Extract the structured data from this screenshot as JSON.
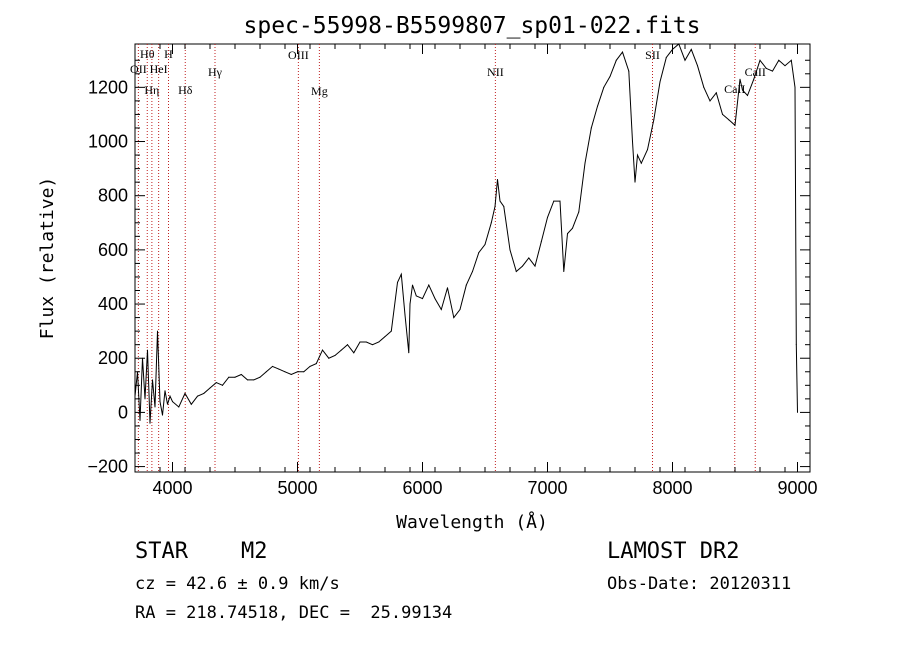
{
  "chart_data": {
    "type": "line",
    "title": "spec-55998-B5599807_sp01-022.fits",
    "xlabel": "Wavelength (Å)",
    "ylabel": "Flux (relative)",
    "xlim": [
      3700,
      9100
    ],
    "ylim": [
      -220,
      1360
    ],
    "x_ticks": [
      4000,
      5000,
      6000,
      7000,
      8000,
      9000
    ],
    "y_ticks": [
      -200,
      0,
      200,
      400,
      600,
      800,
      1000,
      1200
    ],
    "grid": false,
    "series": [
      {
        "color": "#000000",
        "x": [
          3700,
          3720,
          3740,
          3760,
          3780,
          3800,
          3820,
          3840,
          3860,
          3880,
          3900,
          3920,
          3940,
          3960,
          3980,
          4000,
          4050,
          4100,
          4150,
          4200,
          4250,
          4300,
          4350,
          4400,
          4450,
          4500,
          4550,
          4600,
          4650,
          4700,
          4750,
          4800,
          4850,
          4900,
          4950,
          5000,
          5050,
          5100,
          5150,
          5200,
          5250,
          5300,
          5350,
          5400,
          5450,
          5500,
          5550,
          5600,
          5650,
          5700,
          5750,
          5800,
          5830,
          5860,
          5890,
          5900,
          5920,
          5950,
          6000,
          6050,
          6100,
          6150,
          6200,
          6250,
          6300,
          6350,
          6400,
          6450,
          6500,
          6550,
          6580,
          6600,
          6620,
          6650,
          6700,
          6750,
          6800,
          6850,
          6900,
          6950,
          7000,
          7050,
          7100,
          7130,
          7160,
          7200,
          7250,
          7300,
          7350,
          7400,
          7450,
          7500,
          7550,
          7600,
          7650,
          7680,
          7700,
          7720,
          7750,
          7800,
          7850,
          7900,
          7950,
          8000,
          8050,
          8100,
          8150,
          8200,
          8250,
          8300,
          8350,
          8400,
          8450,
          8500,
          8540,
          8560,
          8600,
          8650,
          8700,
          8750,
          8800,
          8850,
          8900,
          8950,
          8980,
          8990,
          9000
        ],
        "y": [
          60,
          150,
          -30,
          200,
          50,
          230,
          -40,
          120,
          20,
          300,
          40,
          -10,
          80,
          30,
          60,
          40,
          20,
          70,
          30,
          60,
          70,
          90,
          110,
          100,
          130,
          130,
          140,
          120,
          120,
          130,
          150,
          170,
          160,
          150,
          140,
          150,
          150,
          170,
          180,
          230,
          200,
          210,
          230,
          250,
          220,
          260,
          260,
          250,
          260,
          280,
          300,
          480,
          510,
          360,
          220,
          400,
          470,
          430,
          420,
          470,
          420,
          380,
          460,
          350,
          380,
          470,
          520,
          590,
          620,
          700,
          760,
          860,
          780,
          760,
          600,
          520,
          540,
          570,
          540,
          630,
          720,
          780,
          780,
          520,
          660,
          680,
          740,
          920,
          1050,
          1130,
          1200,
          1240,
          1300,
          1330,
          1260,
          1000,
          850,
          950,
          920,
          970,
          1080,
          1220,
          1310,
          1340,
          1360,
          1300,
          1340,
          1280,
          1200,
          1150,
          1180,
          1100,
          1080,
          1060,
          1230,
          1190,
          1170,
          1230,
          1300,
          1270,
          1260,
          1300,
          1280,
          1300,
          1200,
          250,
          0
        ]
      }
    ],
    "lines": [
      {
        "name": "OII",
        "x": 3727
      },
      {
        "name": "Hθ",
        "x": 3798
      },
      {
        "name": "Hη",
        "x": 3835
      },
      {
        "name": "HeI",
        "x": 3889
      },
      {
        "name": "H",
        "x": 3968
      },
      {
        "name": "Hδ",
        "x": 4102
      },
      {
        "name": "Hγ",
        "x": 4340
      },
      {
        "name": "OIII",
        "x": 5007
      },
      {
        "name": "Mg",
        "x": 5175
      },
      {
        "name": "NII",
        "x": 6583
      },
      {
        "name": "SII",
        "x": 7840
      },
      {
        "name": "CaII",
        "x": 8498
      },
      {
        "name": "CaII",
        "x": 8662
      }
    ]
  },
  "footer": {
    "class": "STAR",
    "subclass": "M2",
    "survey": "LAMOST DR2",
    "cz": "cz = 42.6 ± 0.9 km/s",
    "obs_date": "Obs-Date: 20120311",
    "coords": "RA = 218.74518, DEC =  25.99134"
  }
}
